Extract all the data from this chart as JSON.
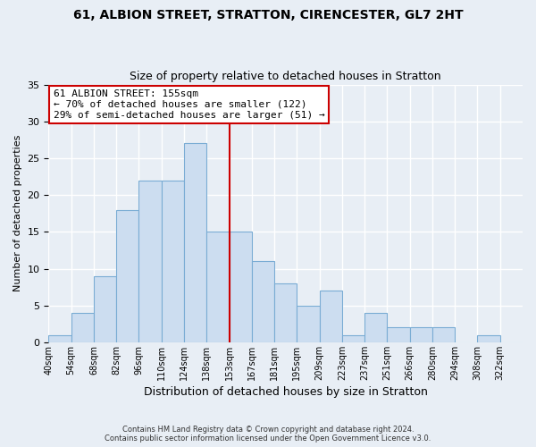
{
  "title1": "61, ALBION STREET, STRATTON, CIRENCESTER, GL7 2HT",
  "title2": "Size of property relative to detached houses in Stratton",
  "xlabel": "Distribution of detached houses by size in Stratton",
  "ylabel": "Number of detached properties",
  "bin_labels": [
    "40sqm",
    "54sqm",
    "68sqm",
    "82sqm",
    "96sqm",
    "110sqm",
    "124sqm",
    "138sqm",
    "153sqm",
    "167sqm",
    "181sqm",
    "195sqm",
    "209sqm",
    "223sqm",
    "237sqm",
    "251sqm",
    "266sqm",
    "280sqm",
    "294sqm",
    "308sqm",
    "322sqm"
  ],
  "bar_heights": [
    1,
    4,
    9,
    18,
    22,
    22,
    27,
    15,
    15,
    11,
    8,
    5,
    7,
    1,
    4,
    2,
    2,
    2,
    0,
    1,
    0
  ],
  "bar_color": "#ccddf0",
  "bar_edge_color": "#7aacd4",
  "vline_x": 8,
  "vline_color": "#cc0000",
  "ylim": [
    0,
    35
  ],
  "yticks": [
    0,
    5,
    10,
    15,
    20,
    25,
    30,
    35
  ],
  "annotation_title": "61 ALBION STREET: 155sqm",
  "annotation_line1": "← 70% of detached houses are smaller (122)",
  "annotation_line2": "29% of semi-detached houses are larger (51) →",
  "annotation_box_color": "#ffffff",
  "annotation_box_edge": "#cc0000",
  "footer_line1": "Contains HM Land Registry data © Crown copyright and database right 2024.",
  "footer_line2": "Contains public sector information licensed under the Open Government Licence v3.0.",
  "background_color": "#e8eef5",
  "grid_color": "#ffffff"
}
